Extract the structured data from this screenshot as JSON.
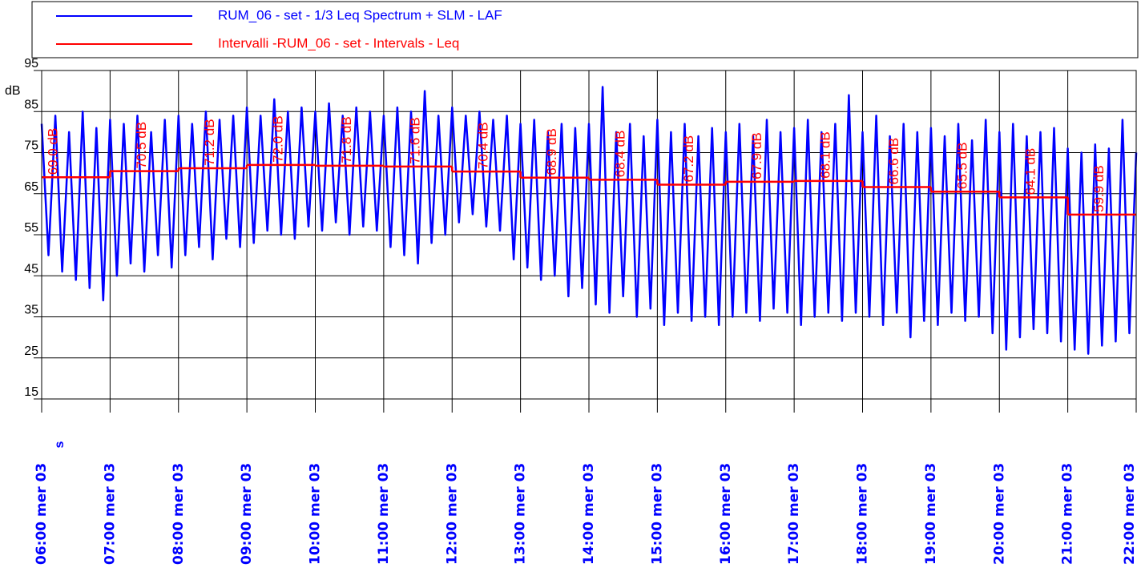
{
  "chart_data": {
    "type": "line",
    "y_label": "dB",
    "x_label": "s",
    "xlim": [
      6,
      22
    ],
    "xticks": [
      {
        "value": 6,
        "label": "06:00 mer 03"
      },
      {
        "value": 7,
        "label": "07:00 mer 03"
      },
      {
        "value": 8,
        "label": "08:00 mer 03"
      },
      {
        "value": 9,
        "label": "09:00 mer 03"
      },
      {
        "value": 10,
        "label": "10:00 mer 03"
      },
      {
        "value": 11,
        "label": "11:00 mer 03"
      },
      {
        "value": 12,
        "label": "12:00 mer 03"
      },
      {
        "value": 13,
        "label": "13:00 mer 03"
      },
      {
        "value": 14,
        "label": "14:00 mer 03"
      },
      {
        "value": 15,
        "label": "15:00 mer 03"
      },
      {
        "value": 16,
        "label": "16:00 mer 03"
      },
      {
        "value": 17,
        "label": "17:00 mer 03"
      },
      {
        "value": 18,
        "label": "18:00 mer 03"
      },
      {
        "value": 19,
        "label": "19:00 mer 03"
      },
      {
        "value": 20,
        "label": "20:00 mer 03"
      },
      {
        "value": 21,
        "label": "21:00 mer 03"
      },
      {
        "value": 22,
        "label": "22:00 mer 03"
      }
    ],
    "ylim": [
      15,
      95
    ],
    "yticks": [
      15,
      25,
      35,
      45,
      55,
      65,
      75,
      85,
      95
    ],
    "grid": true,
    "series": [
      {
        "name": "RUM_06 - set - 1/3 Leq Spectrum + SLM - LAF",
        "color": "#0000ff",
        "style": "line",
        "x": [
          6,
          6.1,
          6.2,
          6.3,
          6.4,
          6.5,
          6.6,
          6.7,
          6.8,
          6.9,
          7,
          7.1,
          7.2,
          7.3,
          7.4,
          7.5,
          7.6,
          7.7,
          7.8,
          7.9,
          8,
          8.1,
          8.2,
          8.3,
          8.4,
          8.5,
          8.6,
          8.7,
          8.8,
          8.9,
          9,
          9.1,
          9.2,
          9.3,
          9.4,
          9.5,
          9.6,
          9.7,
          9.8,
          9.9,
          10,
          10.1,
          10.2,
          10.3,
          10.4,
          10.5,
          10.6,
          10.7,
          10.8,
          10.9,
          11,
          11.1,
          11.2,
          11.3,
          11.4,
          11.5,
          11.6,
          11.7,
          11.8,
          11.9,
          12,
          12.1,
          12.2,
          12.3,
          12.4,
          12.5,
          12.6,
          12.7,
          12.8,
          12.9,
          13,
          13.1,
          13.2,
          13.3,
          13.4,
          13.5,
          13.6,
          13.7,
          13.8,
          13.9,
          14,
          14.1,
          14.2,
          14.3,
          14.4,
          14.5,
          14.6,
          14.7,
          14.8,
          14.9,
          15,
          15.1,
          15.2,
          15.3,
          15.4,
          15.5,
          15.6,
          15.7,
          15.8,
          15.9,
          16,
          16.1,
          16.2,
          16.3,
          16.4,
          16.5,
          16.6,
          16.7,
          16.8,
          16.9,
          17,
          17.1,
          17.2,
          17.3,
          17.4,
          17.5,
          17.6,
          17.7,
          17.8,
          17.9,
          18,
          18.1,
          18.2,
          18.3,
          18.4,
          18.5,
          18.6,
          18.7,
          18.8,
          18.9,
          19,
          19.1,
          19.2,
          19.3,
          19.4,
          19.5,
          19.6,
          19.7,
          19.8,
          19.9,
          20,
          20.1,
          20.2,
          20.3,
          20.4,
          20.5,
          20.6,
          20.7,
          20.8,
          20.9,
          21,
          21.1,
          21.2,
          21.3,
          21.4,
          21.5,
          21.6,
          21.7,
          21.8,
          21.9,
          22
        ],
        "values": [
          82,
          50,
          84,
          46,
          80,
          44,
          85,
          42,
          81,
          39,
          83,
          45,
          82,
          48,
          84,
          46,
          80,
          50,
          83,
          47,
          84,
          50,
          82,
          52,
          85,
          49,
          83,
          54,
          84,
          52,
          86,
          53,
          84,
          56,
          88,
          55,
          85,
          54,
          86,
          57,
          85,
          56,
          87,
          58,
          84,
          55,
          86,
          57,
          85,
          56,
          84,
          52,
          86,
          50,
          85,
          48,
          90,
          53,
          84,
          55,
          86,
          58,
          84,
          60,
          85,
          57,
          83,
          56,
          84,
          49,
          82,
          47,
          83,
          44,
          80,
          45,
          82,
          40,
          81,
          42,
          82,
          38,
          91,
          36,
          80,
          40,
          82,
          35,
          79,
          37,
          83,
          33,
          80,
          36,
          82,
          34,
          79,
          35,
          81,
          33,
          80,
          35,
          82,
          36,
          79,
          34,
          83,
          37,
          80,
          36,
          81,
          33,
          83,
          35,
          80,
          36,
          82,
          34,
          89,
          36,
          80,
          35,
          84,
          33,
          79,
          36,
          82,
          30,
          80,
          34,
          81,
          33,
          79,
          36,
          82,
          34,
          78,
          35,
          83,
          31,
          80,
          27,
          82,
          30,
          79,
          32,
          80,
          31,
          81,
          29,
          76,
          27,
          75,
          26,
          77,
          28,
          76,
          29,
          83,
          31,
          75
        ]
      },
      {
        "name": "Intervalli -RUM_06 - set - Intervals - Leq",
        "color": "#ff0000",
        "style": "step",
        "x": [
          6,
          7,
          8,
          9,
          10,
          11,
          12,
          13,
          14,
          15,
          16,
          17,
          18,
          19,
          20,
          21
        ],
        "values": [
          69.0,
          70.5,
          71.2,
          72.0,
          71.8,
          71.6,
          70.4,
          68.9,
          68.4,
          67.2,
          67.9,
          68.1,
          66.6,
          65.5,
          64.1,
          59.9
        ],
        "value_labels": [
          "69.0 dB",
          "70.5 dB",
          "71.2 dB",
          "72.0 dB",
          "71.8 dB",
          "71.6 dB",
          "70.4 dB",
          "68.9 dB",
          "68.4 dB",
          "67.2 dB",
          "67.9 dB",
          "68.1 dB",
          "66.6 dB",
          "65.5 dB",
          "64.1 dB",
          "59.9 dB"
        ]
      }
    ]
  }
}
